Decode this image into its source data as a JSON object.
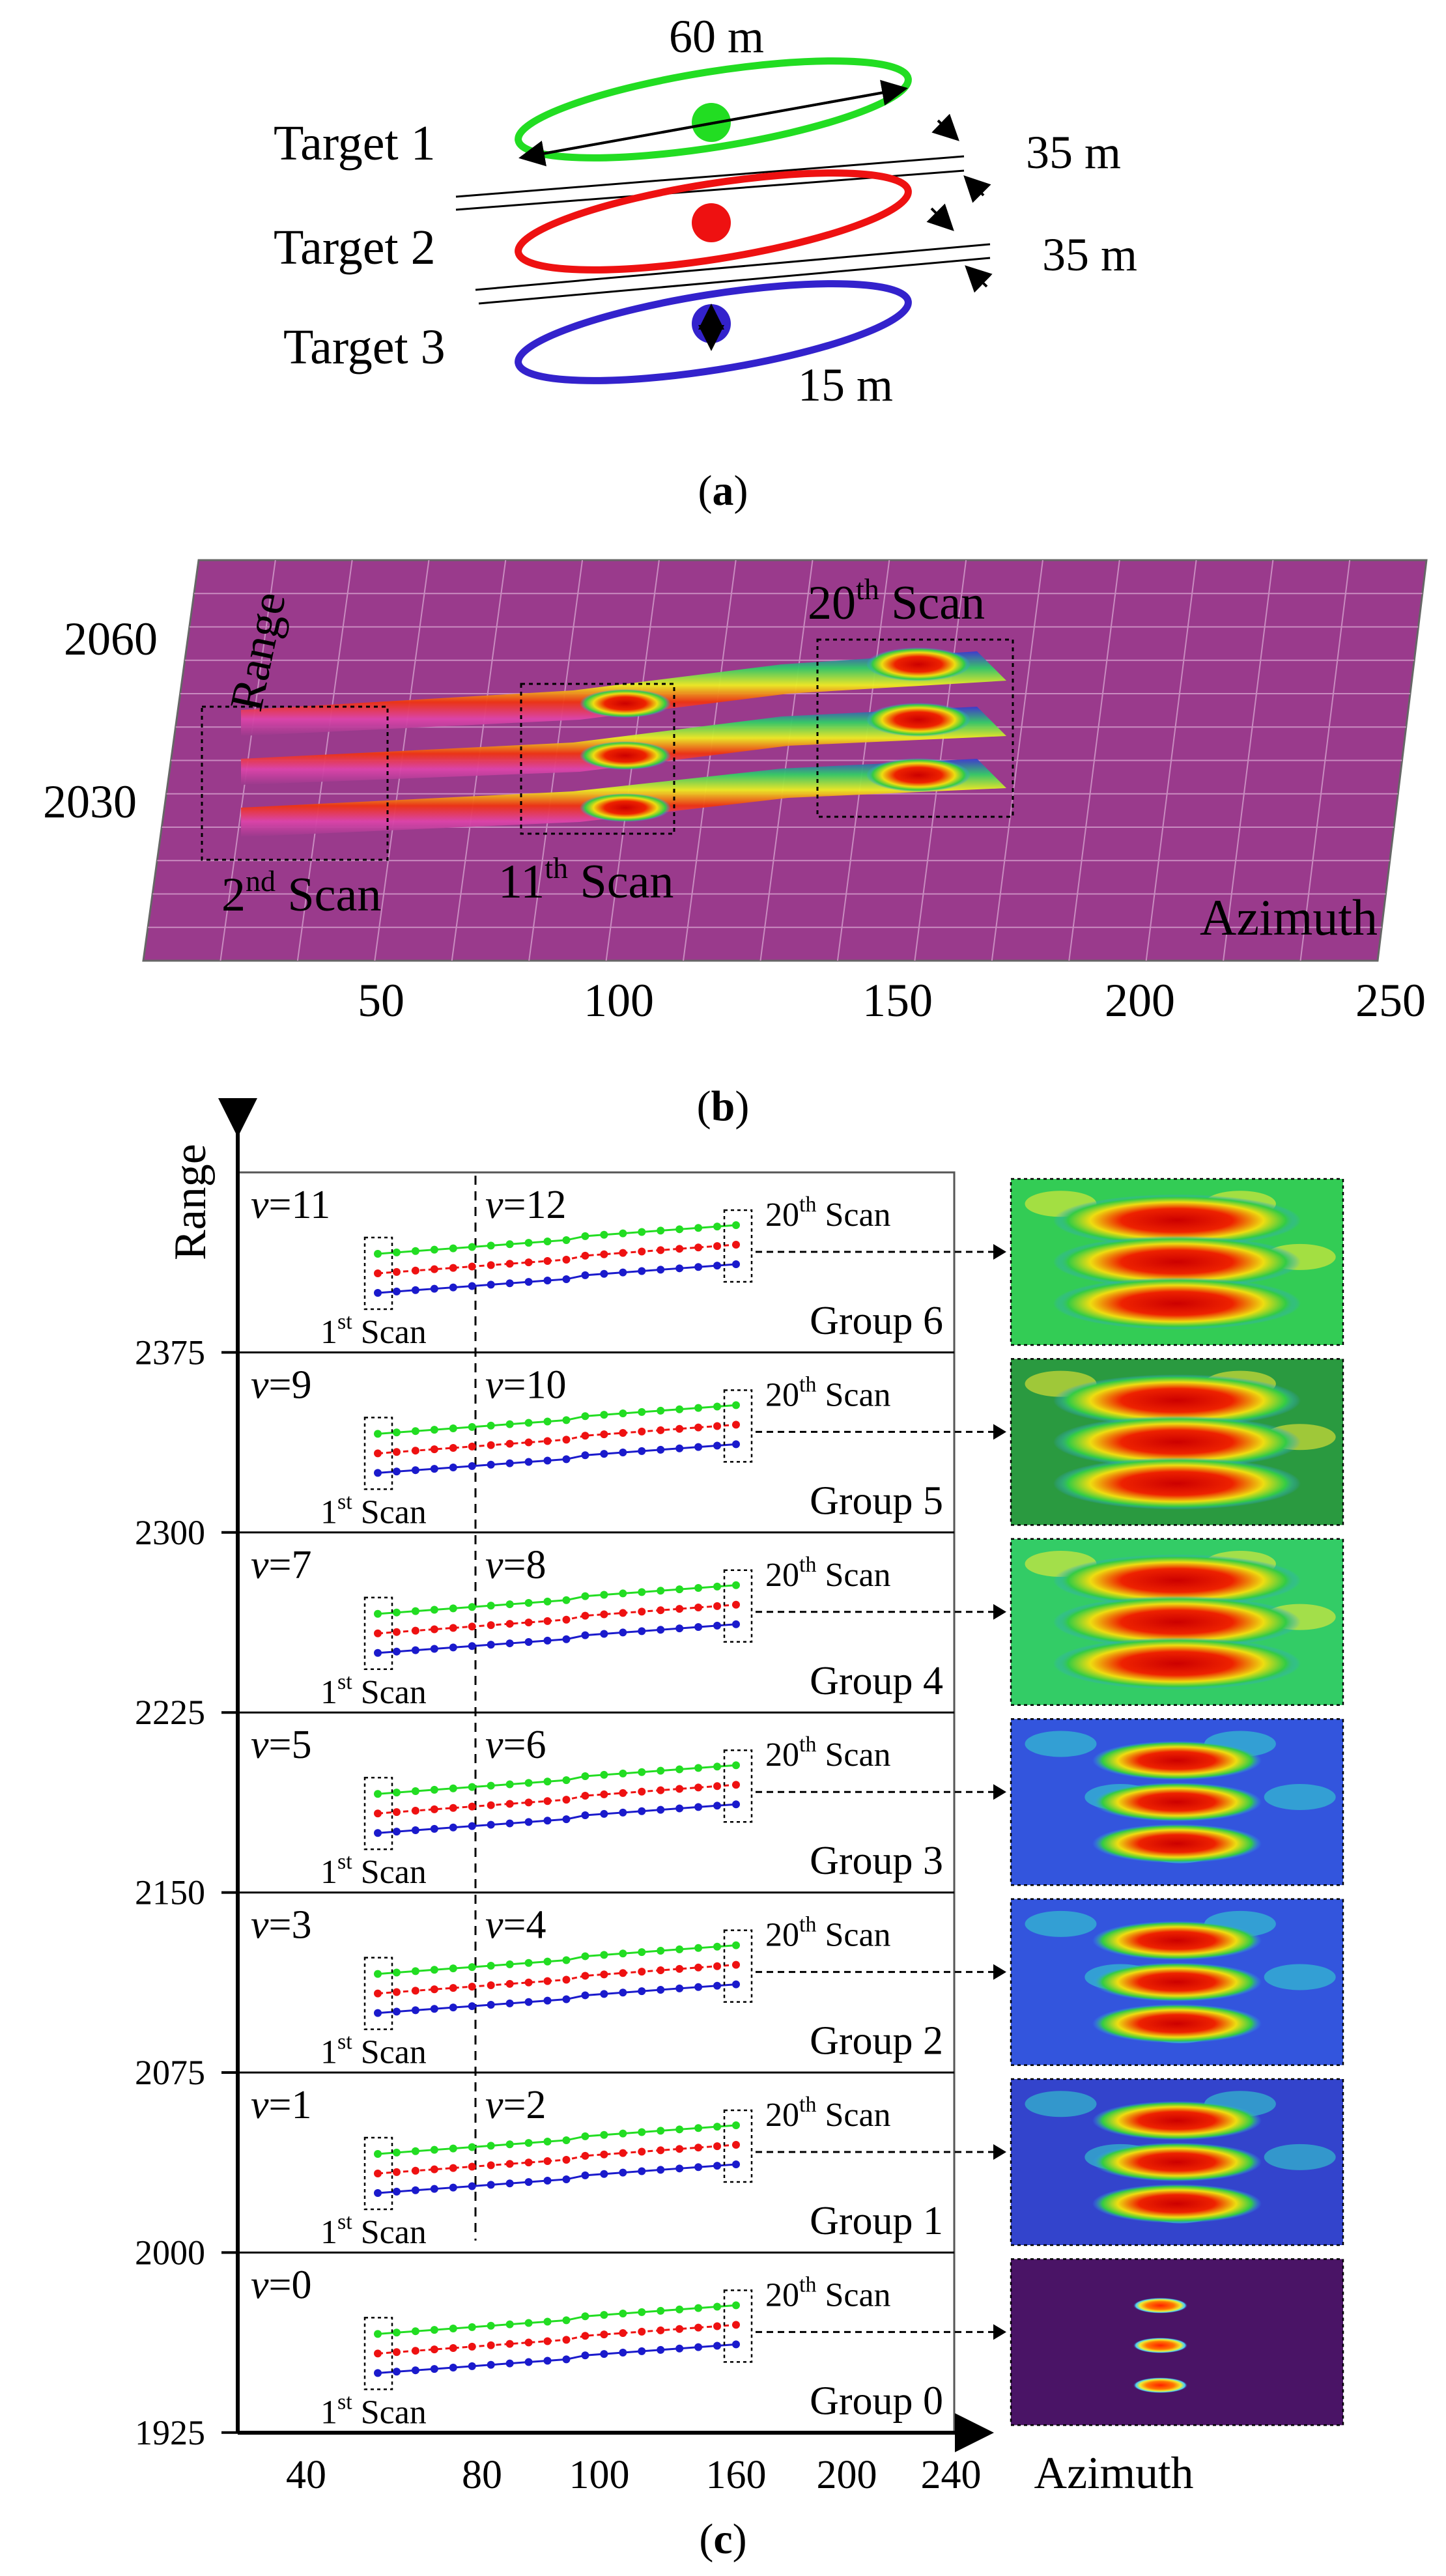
{
  "panel_a": {
    "caption": "(a)",
    "targets": [
      {
        "label": "Target 1",
        "color": "#22dd22"
      },
      {
        "label": "Target 2",
        "color": "#ee1111"
      },
      {
        "label": "Target 3",
        "color": "#3322cc"
      }
    ],
    "dimensions": {
      "length": "60 m",
      "spacing_1": "35 m",
      "spacing_2": "35 m",
      "width": "15 m"
    }
  },
  "panel_b": {
    "caption": "(b)",
    "axis_label_x": "Azimuth",
    "axis_label_y": "Range",
    "x_ticks": [
      "50",
      "100",
      "150",
      "200",
      "250"
    ],
    "y_ticks": [
      "2060",
      "2030"
    ],
    "scan_labels": [
      {
        "num": "2",
        "sup": "nd",
        "rest": " Scan"
      },
      {
        "num": "11",
        "sup": "th",
        "rest": " Scan"
      },
      {
        "num": "20",
        "sup": "th",
        "rest": " Scan"
      }
    ],
    "surface_color": "#9a3a8c"
  },
  "panel_c": {
    "caption": "(c)",
    "axis_label_y": "Range",
    "axis_label_x": "Azimuth",
    "y_ticks": [
      "2375",
      "2300",
      "2225",
      "2150",
      "2075",
      "2000",
      "1925"
    ],
    "x_ticks": [
      "40",
      "80",
      "100",
      "160",
      "200",
      "240"
    ],
    "first_scan": {
      "num": "1",
      "sup": "st",
      "rest": " Scan"
    },
    "last_scan": {
      "num": "20",
      "sup": "th",
      "rest": " Scan"
    },
    "groups": [
      {
        "name": "Group 6",
        "v_left": "=11",
        "v_right": "=12"
      },
      {
        "name": "Group 5",
        "v_left": "=9",
        "v_right": "=10"
      },
      {
        "name": "Group 4",
        "v_left": "=7",
        "v_right": "=8"
      },
      {
        "name": "Group 3",
        "v_left": "=5",
        "v_right": "=6"
      },
      {
        "name": "Group 2",
        "v_left": "=3",
        "v_right": "=4"
      },
      {
        "name": "Group 1",
        "v_left": "=1",
        "v_right": "=2"
      },
      {
        "name": "Group 0",
        "v_left": "=0",
        "v_right": ""
      }
    ],
    "v_symbol": "v",
    "series_colors": [
      "#22dd22",
      "#ee1111",
      "#1a1acc"
    ]
  }
}
